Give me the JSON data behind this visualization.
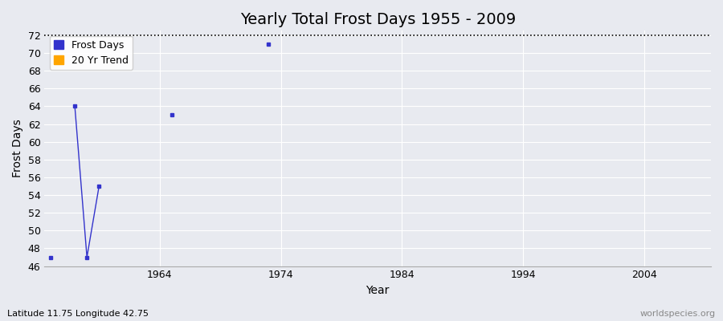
{
  "title": "Yearly Total Frost Days 1955 - 2009",
  "xlabel": "Year",
  "ylabel": "Frost Days",
  "subtitle": "Latitude 11.75 Longitude 42.75",
  "watermark": "worldspecies.org",
  "ylim": [
    46,
    72.5
  ],
  "xlim": [
    1954.5,
    2009.5
  ],
  "yticks": [
    46,
    48,
    50,
    52,
    54,
    56,
    58,
    60,
    62,
    64,
    66,
    68,
    70,
    72
  ],
  "xticks": [
    1964,
    1974,
    1984,
    1994,
    2004
  ],
  "hline_y": 72,
  "segments": [
    {
      "x": [
        1955
      ],
      "y": [
        47
      ]
    },
    {
      "x": [
        1957,
        1958,
        1959
      ],
      "y": [
        64,
        47,
        55
      ]
    },
    {
      "x": [
        1965
      ],
      "y": [
        63
      ]
    },
    {
      "x": [
        1973
      ],
      "y": [
        71
      ]
    }
  ],
  "frost_color": "#3333cc",
  "trend_color": "#FFA500",
  "bg_color": "#e8eaf0",
  "grid_color": "#ffffff",
  "title_fontsize": 14,
  "axis_label_fontsize": 10,
  "tick_fontsize": 9,
  "legend_fontsize": 9
}
